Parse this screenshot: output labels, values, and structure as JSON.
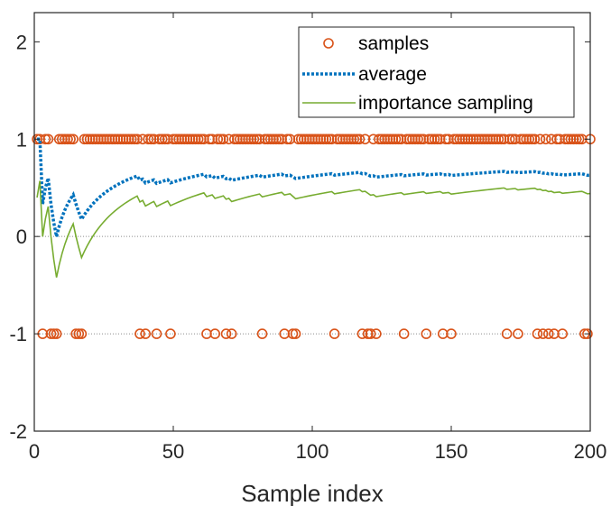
{
  "chart_data": {
    "type": "line",
    "title": "",
    "xlabel": "Sample index",
    "ylabel": "",
    "xlim": [
      0,
      200
    ],
    "ylim": [
      -2,
      2.3
    ],
    "xticks": [
      0,
      50,
      100,
      150,
      200
    ],
    "yticks": [
      -2,
      -1,
      0,
      1,
      2
    ],
    "reference_lines": [
      1,
      0,
      -1
    ],
    "legend_position": "top-right",
    "series": [
      {
        "name": "samples",
        "kind": "markers",
        "marker": "circle",
        "color": "#D95319",
        "negative_indices": [
          3,
          6,
          7,
          8,
          15,
          16,
          17,
          38,
          40,
          44,
          49,
          62,
          65,
          69,
          71,
          82,
          90,
          93,
          94,
          108,
          118,
          120,
          121,
          123,
          133,
          141,
          147,
          150,
          170,
          174,
          181,
          183,
          185,
          187,
          190,
          198,
          199
        ],
        "x": [],
        "y": []
      },
      {
        "name": "average",
        "kind": "line",
        "style": "dotted",
        "color": "#0072BD",
        "x": [],
        "y": []
      },
      {
        "name": "importance sampling",
        "kind": "line",
        "style": "solid",
        "color": "#77AC30",
        "x": [],
        "y": []
      }
    ]
  }
}
